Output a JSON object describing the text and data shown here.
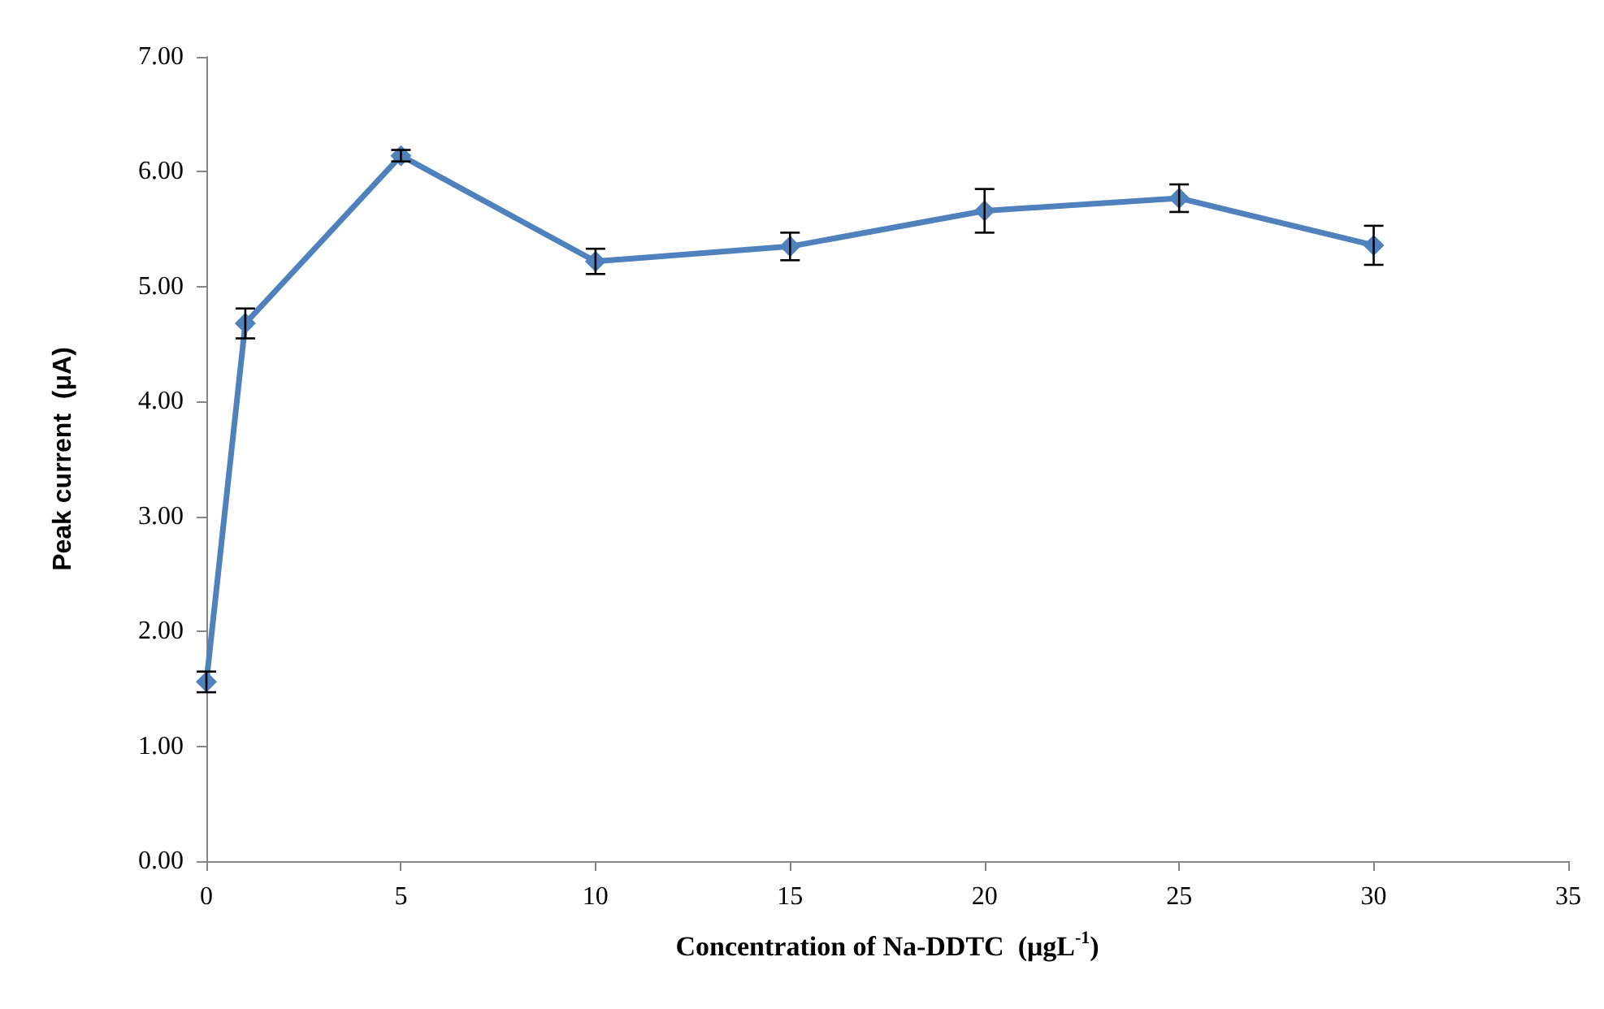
{
  "chart_data": {
    "type": "line",
    "xlabel": "Concentration of Na-DDTC  (μgL$^{-1}$)",
    "ylabel": "Peak current  (μA)",
    "x": [
      0,
      1,
      5,
      10,
      15,
      20,
      25,
      30
    ],
    "series": [
      {
        "color": "#4f81bd",
        "values": [
          1.56,
          4.68,
          6.14,
          5.22,
          5.35,
          5.66,
          5.77,
          5.36
        ],
        "errors": [
          0.09,
          0.13,
          0.05,
          0.11,
          0.12,
          0.19,
          0.12,
          0.17
        ]
      }
    ],
    "xlim": [
      0,
      35
    ],
    "xticks": [
      0,
      5,
      10,
      15,
      20,
      25,
      30,
      35
    ],
    "ylim": [
      0,
      7
    ],
    "yticks": [
      {
        "value": 0,
        "label": "0.00"
      },
      {
        "value": 1,
        "label": "1.00"
      },
      {
        "value": 2,
        "label": "2.00"
      },
      {
        "value": 3,
        "label": "3.00"
      },
      {
        "value": 4,
        "label": "4.00"
      },
      {
        "value": 5,
        "label": "5.00"
      },
      {
        "value": 6,
        "label": "6.00"
      },
      {
        "value": 7,
        "label": "7.00"
      }
    ],
    "grid": false,
    "marker": "diamond",
    "line_style": "solid"
  }
}
